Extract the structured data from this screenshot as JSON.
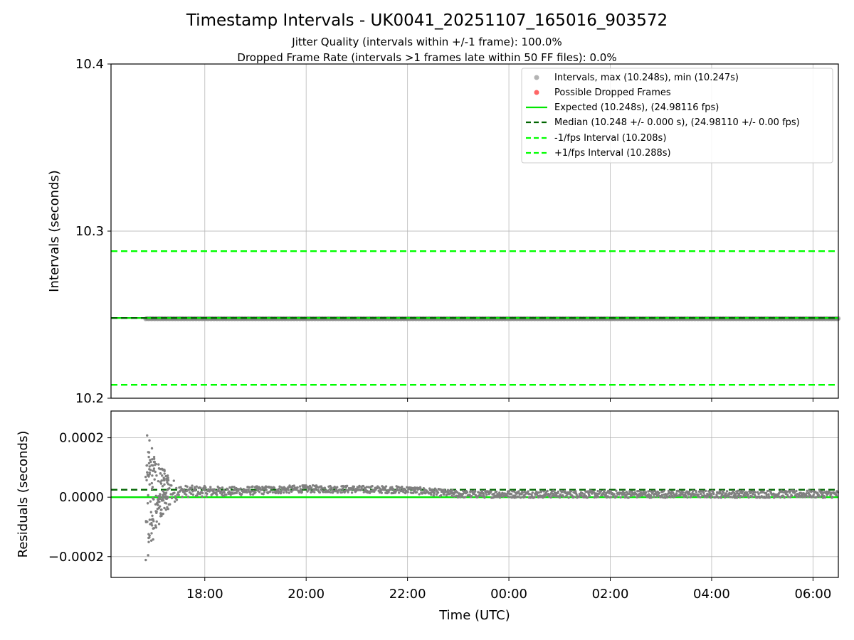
{
  "chart_data": [
    {
      "type": "scatter",
      "title": "Timestamp Intervals - UK0041_20251107_165016_903572",
      "subtitle_lines": [
        "Jitter Quality (intervals within +/-1 frame): 100.0%",
        "Dropped Frame Rate (intervals >1 frames late within 50 FF files): 0.0%"
      ],
      "xlabel": "",
      "ylabel": "Intervals (seconds)",
      "ylim": [
        10.2,
        10.4
      ],
      "yticks": [
        "10.2",
        "10.3",
        "10.4"
      ],
      "xlim_hours_utc": [
        16.15,
        30.5
      ],
      "xticks": [
        "18:00",
        "20:00",
        "22:00",
        "00:00",
        "02:00",
        "04:00",
        "06:00"
      ],
      "grid": true,
      "legend_position": "top-right",
      "legend": [
        "Intervals, max (10.248s), min (10.247s)",
        "Possible Dropped Frames",
        "Expected (10.248s), (24.98116 fps)",
        "Median (10.248 +/- 0.000 s), (24.98110 +/- 0.00 fps)",
        "-1/fps Interval (10.208s)",
        "+1/fps Interval (10.288s)"
      ],
      "series": [
        {
          "name": "Intervals, max (10.248s), min (10.247s)",
          "x_range": [
            "16:50",
            "06:30"
          ],
          "y_min": 10.247,
          "y_max": 10.248
        },
        {
          "name": "Possible Dropped Frames",
          "count": 0
        },
        {
          "name": "Expected (10.248s), (24.98116 fps)",
          "y": 10.248
        },
        {
          "name": "Median (10.248 +/- 0.000 s), (24.98110 +/- 0.00 fps)",
          "y": 10.248
        },
        {
          "name": "-1/fps Interval (10.208s)",
          "y": 10.208
        },
        {
          "name": "+1/fps Interval (10.288s)",
          "y": 10.288
        }
      ],
      "colors": {
        "intervals": "#808080",
        "dropped": "#ff0000",
        "expected": "#00e600",
        "median": "#006400",
        "fps_interval": "#00ff00"
      }
    },
    {
      "type": "scatter",
      "xlabel": "Time (UTC)",
      "ylabel": "Residuals (seconds)",
      "ylim": [
        -0.00027,
        0.00029
      ],
      "yticks": [
        "−0.0002",
        "0.0000",
        "0.0002"
      ],
      "xticks": [
        "18:00",
        "20:00",
        "22:00",
        "00:00",
        "02:00",
        "04:00",
        "06:00"
      ],
      "grid": true,
      "lines": [
        {
          "label": "expected",
          "y": 0.0
        },
        {
          "label": "median",
          "y": 2.5e-05
        }
      ],
      "residual_profile": [
        {
          "t": "16:50",
          "center": 0.0,
          "spread": 0.00022
        },
        {
          "t": "17:10",
          "center": 2e-05,
          "spread": 8e-05
        },
        {
          "t": "17:30",
          "center": 2e-05,
          "spread": 2e-05
        },
        {
          "t": "18:30",
          "center": 2e-05,
          "spread": 1.5e-05
        },
        {
          "t": "20:00",
          "center": 2.8e-05,
          "spread": 1.2e-05
        },
        {
          "t": "22:00",
          "center": 2.5e-05,
          "spread": 1.2e-05
        },
        {
          "t": "23:00",
          "center": 1e-05,
          "spread": 1.2e-05
        },
        {
          "t": "02:00",
          "center": 1e-05,
          "spread": 1.2e-05
        },
        {
          "t": "06:30",
          "center": 1e-05,
          "spread": 1.2e-05
        }
      ]
    }
  ]
}
